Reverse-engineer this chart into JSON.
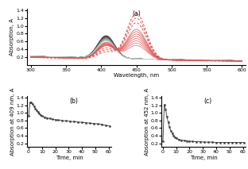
{
  "title_a": "(a)",
  "title_b": "(b)",
  "title_c": "(c)",
  "panel_a": {
    "xlabel": "Wavelength, nm",
    "ylabel": "Absorption, A",
    "xticks": [
      300,
      350,
      400,
      450,
      500,
      550,
      600
    ],
    "yticks": [
      0.2,
      0.4,
      0.6,
      0.8,
      1.0,
      1.2,
      1.4
    ],
    "ylim": [
      0.0,
      1.45
    ],
    "xlim": [
      295,
      605
    ],
    "n_gray_lines": 20,
    "n_red_solid": 8,
    "n_red_dashed": 3
  },
  "panel_b": {
    "xlabel": "Time, min",
    "ylabel": "Absorption at 409 nm, A",
    "xlim": [
      -1,
      62
    ],
    "ylim": [
      0.1,
      1.45
    ],
    "yticks": [
      0.2,
      0.4,
      0.6,
      0.8,
      1.0,
      1.2,
      1.4
    ],
    "xticks": [
      0,
      10,
      20,
      30,
      40,
      50,
      60
    ],
    "time_points": [
      0,
      1,
      2,
      3,
      4,
      5,
      6,
      7,
      8,
      9,
      10,
      12,
      14,
      16,
      18,
      20,
      22,
      25,
      28,
      31,
      34,
      37,
      40,
      43,
      46,
      49,
      52,
      55,
      58,
      61
    ],
    "abs_values": [
      0.92,
      1.27,
      1.27,
      1.23,
      1.18,
      1.12,
      1.07,
      1.02,
      0.98,
      0.95,
      0.92,
      0.89,
      0.87,
      0.85,
      0.83,
      0.82,
      0.81,
      0.8,
      0.79,
      0.78,
      0.77,
      0.76,
      0.75,
      0.74,
      0.73,
      0.72,
      0.71,
      0.7,
      0.67,
      0.65
    ]
  },
  "panel_c": {
    "xlabel": "Time, min",
    "ylabel": "Absorption at 452 nm, A",
    "xlim": [
      -1,
      62
    ],
    "ylim": [
      0.1,
      1.45
    ],
    "yticks": [
      0.2,
      0.4,
      0.6,
      0.8,
      1.0,
      1.2,
      1.4
    ],
    "xticks": [
      0,
      10,
      20,
      30,
      40,
      50,
      60
    ],
    "time_points": [
      0,
      1,
      2,
      3,
      4,
      5,
      6,
      7,
      8,
      9,
      10,
      12,
      14,
      16,
      18,
      20,
      22,
      25,
      28,
      31,
      34,
      37,
      40,
      43,
      46,
      49,
      52,
      55,
      58,
      61
    ],
    "abs_values": [
      0.25,
      1.22,
      1.1,
      0.9,
      0.75,
      0.62,
      0.53,
      0.46,
      0.4,
      0.36,
      0.33,
      0.3,
      0.28,
      0.27,
      0.26,
      0.25,
      0.25,
      0.24,
      0.24,
      0.23,
      0.23,
      0.23,
      0.22,
      0.22,
      0.22,
      0.22,
      0.22,
      0.22,
      0.22,
      0.22
    ]
  },
  "line_color_red": "#e05555",
  "marker_color": "#333333"
}
